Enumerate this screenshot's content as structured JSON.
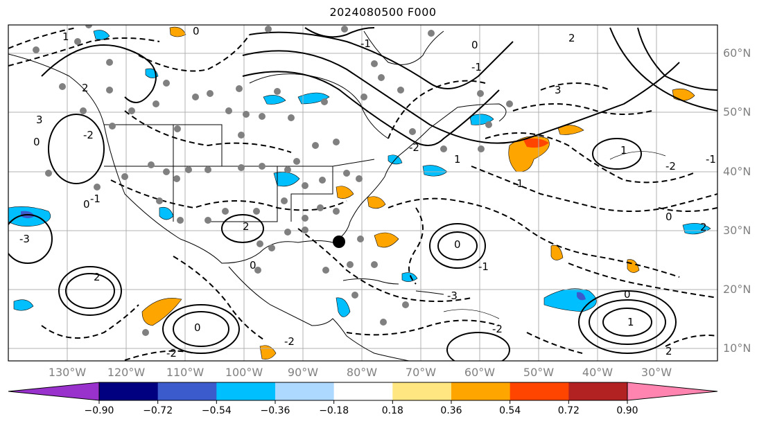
{
  "title": "2024080500 F000",
  "lat_labels": [
    "60°N",
    "50°N",
    "40°N",
    "30°N",
    "20°N",
    "10°N"
  ],
  "lon_labels": [
    "130°W",
    "120°W",
    "110°W",
    "100°W",
    "90°W",
    "80°W",
    "70°W",
    "60°W",
    "50°W",
    "40°W",
    "30°W"
  ],
  "colorbar": {
    "ticks": [
      "−0.90",
      "−0.72",
      "−0.54",
      "−0.36",
      "−0.18",
      "0.18",
      "0.36",
      "0.54",
      "0.72",
      "0.90"
    ],
    "colors": [
      "#9932cc",
      "#000080",
      "#3b5bcc",
      "#00bfff",
      "#add8ff",
      "#ffffff",
      "#ffe680",
      "#ffa500",
      "#ff4500",
      "#b22222",
      "#ff85b0"
    ]
  },
  "contour_labels": [
    "0",
    "1",
    "2",
    "3",
    "0",
    "-2",
    "-1",
    "-3",
    "0",
    "2",
    "0",
    "-2",
    "2",
    "0",
    "-2",
    "-1",
    "0",
    "-1",
    "-2",
    "1",
    "-1",
    "0",
    "-1",
    "3",
    "2",
    "1",
    "-2",
    "-1",
    "0",
    "2",
    "-3",
    "-2",
    "0",
    "1",
    "2"
  ],
  "colors": {
    "positive": "#ffa500",
    "negative": "#00bfff",
    "deep_negative": "#3b5bcc",
    "max": "#ff4500",
    "dot": "#808080"
  }
}
